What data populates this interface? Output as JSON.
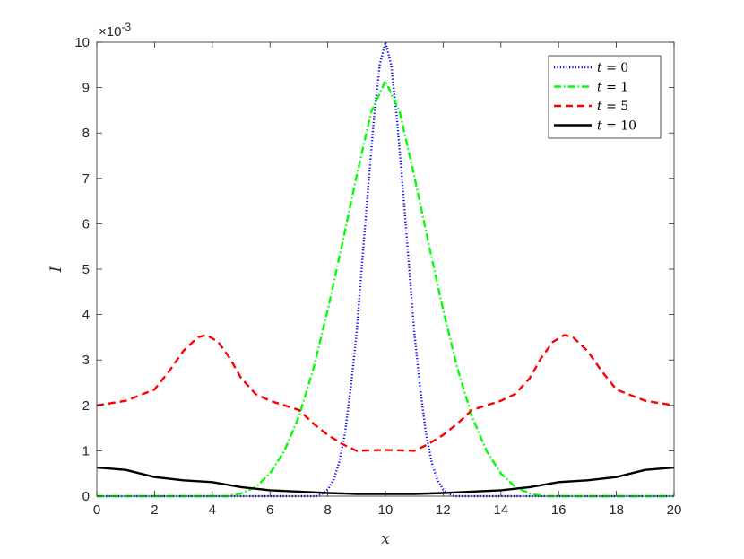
{
  "chart_data": {
    "type": "line",
    "title": "",
    "xlabel": "x",
    "ylabel": "I",
    "y_exponent_label": "×10",
    "y_exponent_power": "-3",
    "xlim": [
      0,
      20
    ],
    "ylim": [
      0,
      10
    ],
    "x_ticks": [
      0,
      2,
      4,
      6,
      8,
      10,
      12,
      14,
      16,
      18,
      20
    ],
    "y_ticks": [
      0,
      1,
      2,
      3,
      4,
      5,
      6,
      7,
      8,
      9,
      10
    ],
    "grid": false,
    "legend_position": "top-right",
    "series": [
      {
        "name": "t = 0",
        "legend_var": "t",
        "legend_val": "= 0",
        "color": "#0000ff",
        "style": "dotted",
        "x": [
          0,
          7.6,
          7.8,
          8.0,
          8.2,
          8.4,
          8.6,
          8.8,
          9.0,
          9.2,
          9.4,
          9.6,
          9.8,
          10.0,
          10.2,
          10.4,
          10.6,
          10.8,
          11.0,
          11.2,
          11.4,
          11.6,
          11.8,
          12.0,
          12.2,
          12.4,
          20
        ],
        "y": [
          0,
          0.0,
          0.05,
          0.15,
          0.35,
          0.75,
          1.4,
          2.4,
          3.6,
          5.2,
          6.8,
          8.3,
          9.5,
          10.0,
          9.5,
          8.3,
          6.8,
          5.2,
          3.6,
          2.4,
          1.4,
          0.75,
          0.35,
          0.15,
          0.05,
          0.0,
          0
        ]
      },
      {
        "name": "t = 1",
        "legend_var": "t",
        "legend_val": "= 1",
        "color": "#00ff00",
        "style": "dashdot",
        "x": [
          0,
          4.5,
          5.0,
          5.5,
          6.0,
          6.5,
          7.0,
          7.5,
          8.0,
          8.5,
          9.0,
          9.5,
          10.0,
          10.5,
          11.0,
          11.5,
          12.0,
          12.5,
          13.0,
          13.5,
          14.0,
          14.5,
          15.0,
          15.5,
          20
        ],
        "y": [
          0,
          0.0,
          0.06,
          0.2,
          0.5,
          1.0,
          1.75,
          2.8,
          4.1,
          5.55,
          7.05,
          8.45,
          9.15,
          8.45,
          7.05,
          5.55,
          4.1,
          2.8,
          1.75,
          1.0,
          0.5,
          0.2,
          0.06,
          0.0,
          0
        ]
      },
      {
        "name": "t = 5",
        "legend_var": "t",
        "legend_val": "= 5",
        "color": "#ff0000",
        "style": "dashed",
        "x": [
          0,
          1,
          2,
          2.5,
          3,
          3.5,
          3.8,
          4.2,
          4.6,
          5,
          5.5,
          6,
          7,
          7.5,
          8,
          8.5,
          9,
          10,
          11,
          11.5,
          12,
          12.5,
          13,
          14,
          14.5,
          15,
          15.4,
          15.8,
          16.2,
          16.5,
          17,
          17.5,
          18,
          19,
          20
        ],
        "y": [
          2.0,
          2.1,
          2.35,
          2.75,
          3.2,
          3.5,
          3.55,
          3.4,
          3.05,
          2.6,
          2.25,
          2.1,
          1.9,
          1.6,
          1.35,
          1.15,
          1.0,
          1.02,
          1.0,
          1.15,
          1.35,
          1.6,
          1.9,
          2.1,
          2.25,
          2.6,
          3.05,
          3.4,
          3.55,
          3.5,
          3.2,
          2.75,
          2.35,
          2.1,
          2.0
        ]
      },
      {
        "name": "t = 10",
        "legend_var": "t",
        "legend_val": "= 10",
        "color": "#000000",
        "style": "solid",
        "x": [
          0,
          1,
          2,
          3,
          4,
          5,
          6,
          7,
          8,
          9,
          10,
          11,
          12,
          13,
          14,
          15,
          16,
          17,
          18,
          19,
          20
        ],
        "y": [
          0.63,
          0.58,
          0.42,
          0.35,
          0.31,
          0.2,
          0.13,
          0.1,
          0.07,
          0.05,
          0.05,
          0.05,
          0.07,
          0.1,
          0.13,
          0.2,
          0.31,
          0.35,
          0.42,
          0.58,
          0.63
        ]
      }
    ]
  }
}
